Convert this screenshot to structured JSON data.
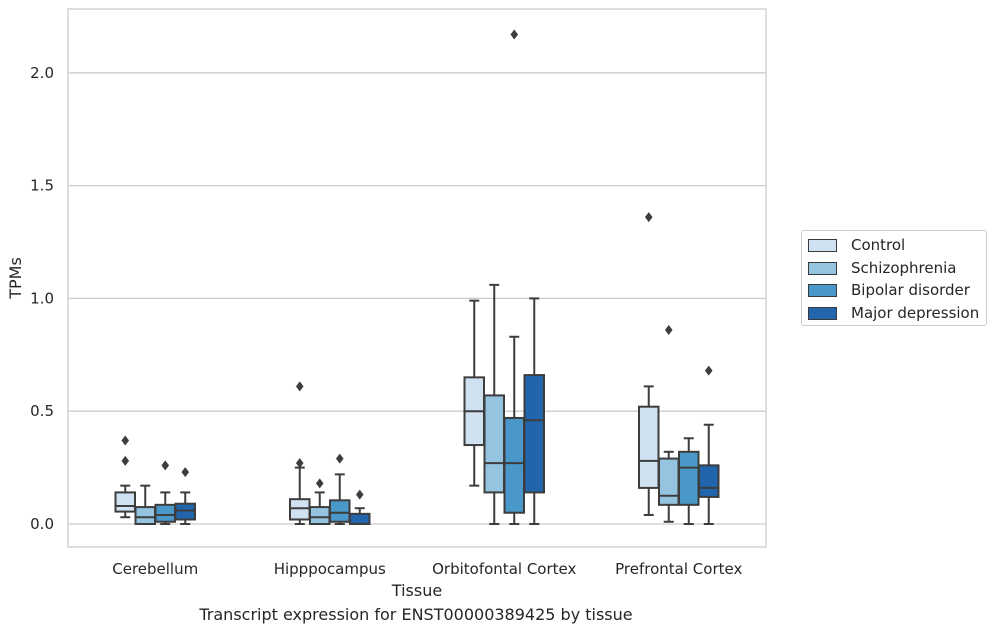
{
  "caption": "Transcript expression for ENST00000389425 by tissue",
  "chart_data": {
    "type": "box",
    "xlabel": "Tissue",
    "ylabel": "TPMs",
    "ylim": [
      -0.1,
      2.28
    ],
    "yticks": [
      0.0,
      0.5,
      1.0,
      1.5,
      2.0
    ],
    "ytick_labels": [
      "0.0",
      "0.5",
      "1.0",
      "1.5",
      "2.0"
    ],
    "grid": "horizontal",
    "legend_position": "right",
    "categories": [
      "Cerebellum",
      "Hipppocampus",
      "Orbitofontal Cortex",
      "Prefrontal Cortex"
    ],
    "series": [
      {
        "name": "Control",
        "color": "#d0e1f2",
        "boxes": [
          {
            "whislo": 0.03,
            "q1": 0.055,
            "med": 0.08,
            "q3": 0.14,
            "whishi": 0.17,
            "fliers": [
              0.28,
              0.37
            ]
          },
          {
            "whislo": 0.0,
            "q1": 0.02,
            "med": 0.07,
            "q3": 0.11,
            "whishi": 0.25,
            "fliers": [
              0.27,
              0.61
            ]
          },
          {
            "whislo": 0.17,
            "q1": 0.35,
            "med": 0.5,
            "q3": 0.65,
            "whishi": 0.99,
            "fliers": []
          },
          {
            "whislo": 0.04,
            "q1": 0.16,
            "med": 0.28,
            "q3": 0.52,
            "whishi": 0.61,
            "fliers": [
              1.36
            ]
          }
        ]
      },
      {
        "name": "Schizophrenia",
        "color": "#94c4df",
        "boxes": [
          {
            "whislo": 0.0,
            "q1": 0.0,
            "med": 0.03,
            "q3": 0.075,
            "whishi": 0.17,
            "fliers": []
          },
          {
            "whislo": 0.0,
            "q1": 0.0,
            "med": 0.03,
            "q3": 0.075,
            "whishi": 0.14,
            "fliers": [
              0.18
            ]
          },
          {
            "whislo": 0.0,
            "q1": 0.14,
            "med": 0.27,
            "q3": 0.57,
            "whishi": 1.06,
            "fliers": []
          },
          {
            "whislo": 0.01,
            "q1": 0.085,
            "med": 0.125,
            "q3": 0.29,
            "whishi": 0.32,
            "fliers": [
              0.86
            ]
          }
        ]
      },
      {
        "name": "Bipolar disorder",
        "color": "#4a98c9",
        "boxes": [
          {
            "whislo": 0.0,
            "q1": 0.01,
            "med": 0.04,
            "q3": 0.085,
            "whishi": 0.14,
            "fliers": [
              0.26
            ]
          },
          {
            "whislo": 0.0,
            "q1": 0.01,
            "med": 0.05,
            "q3": 0.105,
            "whishi": 0.22,
            "fliers": [
              0.29
            ]
          },
          {
            "whislo": 0.0,
            "q1": 0.05,
            "med": 0.27,
            "q3": 0.47,
            "whishi": 0.83,
            "fliers": [
              2.17
            ]
          },
          {
            "whislo": 0.0,
            "q1": 0.085,
            "med": 0.25,
            "q3": 0.32,
            "whishi": 0.38,
            "fliers": []
          }
        ]
      },
      {
        "name": "Major depression",
        "color": "#2166ac",
        "boxes": [
          {
            "whislo": 0.0,
            "q1": 0.02,
            "med": 0.06,
            "q3": 0.09,
            "whishi": 0.14,
            "fliers": [
              0.23
            ]
          },
          {
            "whislo": 0.0,
            "q1": 0.0,
            "med": 0.0,
            "q3": 0.045,
            "whishi": 0.07,
            "fliers": [
              0.13
            ]
          },
          {
            "whislo": 0.0,
            "q1": 0.14,
            "med": 0.46,
            "q3": 0.66,
            "whishi": 1.0,
            "fliers": []
          },
          {
            "whislo": 0.0,
            "q1": 0.12,
            "med": 0.16,
            "q3": 0.26,
            "whishi": 0.44,
            "fliers": [
              0.68
            ]
          }
        ]
      }
    ]
  }
}
